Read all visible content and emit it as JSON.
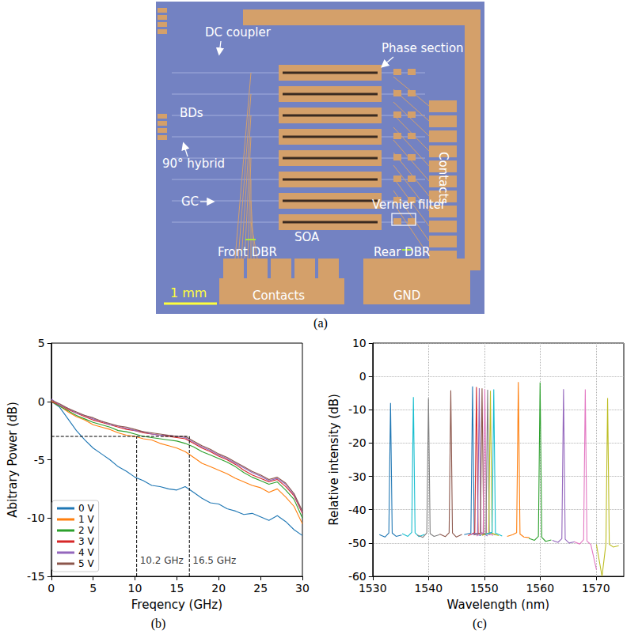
{
  "figure_a": {
    "caption": "(a)",
    "labels": [
      "DC coupler",
      "Phase section",
      "BDs",
      "90° hybrid",
      "GC",
      "Vernier filter",
      "Contacts",
      "SOA",
      "Front DBR",
      "Rear DBR",
      "Contacts",
      "GND"
    ],
    "scale_bar": "1 mm"
  },
  "chart_data": [
    {
      "caption": "(b)",
      "type": "line",
      "x_label": "Freqency (GHz)",
      "y_label": "Abitrary Power (dB)",
      "xlim": [
        0,
        30
      ],
      "xticks": [
        0,
        5,
        10,
        15,
        20,
        25,
        30
      ],
      "ylim": [
        -15,
        5
      ],
      "yticks": [
        -15,
        -10,
        -5,
        0,
        5
      ],
      "grid": false,
      "legend": "lower left",
      "x": [
        0,
        1,
        2,
        3,
        4,
        5,
        6,
        7,
        8,
        9,
        10,
        11,
        12,
        13,
        14,
        15,
        16,
        17,
        18,
        19,
        20,
        21,
        22,
        23,
        24,
        25,
        26,
        27,
        28,
        29,
        30
      ],
      "series": [
        {
          "name": "0 V",
          "color": "#1f77b4",
          "values": [
            0,
            -0.5,
            -1.5,
            -2.5,
            -3.3,
            -4.0,
            -4.5,
            -5.0,
            -5.6,
            -6.0,
            -6.5,
            -6.8,
            -7.2,
            -7.3,
            -7.5,
            -7.6,
            -7.3,
            -7.8,
            -8.3,
            -8.7,
            -8.8,
            -9.2,
            -9.4,
            -9.7,
            -9.6,
            -9.9,
            -10.2,
            -9.8,
            -10.3,
            -11.0,
            -11.5
          ]
        },
        {
          "name": "1 V",
          "color": "#ff7f0e",
          "values": [
            0,
            -0.4,
            -0.9,
            -1.3,
            -1.6,
            -2.0,
            -2.2,
            -2.4,
            -2.7,
            -2.9,
            -3.0,
            -3.2,
            -3.3,
            -3.6,
            -3.8,
            -4.0,
            -4.3,
            -4.8,
            -5.3,
            -5.6,
            -5.9,
            -6.2,
            -6.6,
            -6.9,
            -7.2,
            -7.4,
            -7.8,
            -7.5,
            -8.2,
            -9.0,
            -10.5
          ]
        },
        {
          "name": "2 V",
          "color": "#2ca02c",
          "values": [
            0,
            -0.4,
            -0.8,
            -1.2,
            -1.5,
            -1.8,
            -2.0,
            -2.2,
            -2.5,
            -2.6,
            -2.8,
            -3.0,
            -3.1,
            -3.2,
            -3.3,
            -3.4,
            -3.6,
            -3.9,
            -4.3,
            -4.6,
            -4.9,
            -5.2,
            -5.6,
            -6.1,
            -6.5,
            -6.8,
            -7.1,
            -6.9,
            -7.6,
            -8.4,
            -10.0
          ]
        },
        {
          "name": "3 V",
          "color": "#d62728",
          "values": [
            0,
            -0.3,
            -0.7,
            -1.0,
            -1.3,
            -1.6,
            -1.8,
            -2.0,
            -2.2,
            -2.4,
            -2.5,
            -2.7,
            -2.8,
            -2.9,
            -3.0,
            -3.1,
            -3.2,
            -3.6,
            -4.0,
            -4.3,
            -4.7,
            -5.0,
            -5.4,
            -5.9,
            -6.3,
            -6.6,
            -6.9,
            -6.7,
            -7.3,
            -8.1,
            -9.6
          ]
        },
        {
          "name": "4 V",
          "color": "#9467bd",
          "values": [
            0.2,
            -0.3,
            -0.6,
            -1.0,
            -1.2,
            -1.5,
            -1.7,
            -2.0,
            -2.1,
            -2.3,
            -2.5,
            -2.6,
            -2.8,
            -2.9,
            -2.9,
            -3.0,
            -3.1,
            -3.5,
            -3.9,
            -4.2,
            -4.6,
            -4.9,
            -5.3,
            -5.7,
            -6.1,
            -6.4,
            -6.8,
            -6.6,
            -7.1,
            -8.0,
            -9.5
          ]
        },
        {
          "name": "5 V",
          "color": "#8c564b",
          "values": [
            0.1,
            -0.2,
            -0.6,
            -0.9,
            -1.2,
            -1.4,
            -1.7,
            -1.9,
            -2.1,
            -2.2,
            -2.4,
            -2.6,
            -2.7,
            -2.8,
            -2.9,
            -3.0,
            -3.0,
            -3.4,
            -3.8,
            -4.1,
            -4.5,
            -4.8,
            -5.2,
            -5.6,
            -6.0,
            -6.3,
            -6.7,
            -6.5,
            -7.0,
            -7.9,
            -9.4
          ]
        }
      ],
      "annotations": [
        {
          "text": "10.2 GHz",
          "x": 10.2,
          "y": -3
        },
        {
          "text": "16.5 GHz",
          "x": 16.5,
          "y": -3
        }
      ]
    },
    {
      "caption": "(c)",
      "type": "line",
      "x_label": "Wavelength (nm)",
      "y_label": "Relative intensity (dB)",
      "xlim": [
        1530,
        1575
      ],
      "xticks": [
        1530,
        1540,
        1550,
        1560,
        1570
      ],
      "ylim": [
        -60,
        10
      ],
      "yticks": [
        -60,
        -50,
        -40,
        -30,
        -20,
        -10,
        0,
        10
      ],
      "grid": true,
      "series": [
        {
          "color": "#1f77b4",
          "x": [
            1531.2,
            1532.2,
            1532.9,
            1533.2,
            1533.5,
            1534.2,
            1535.2
          ],
          "values": [
            -47.5,
            -48.2,
            -47.0,
            -8.0,
            -47.0,
            -48.0,
            -47.6
          ]
        },
        {
          "color": "#17becf",
          "x": [
            1535.3,
            1536.3,
            1537.0,
            1537.3,
            1537.6,
            1538.3,
            1539.3
          ],
          "values": [
            -47.2,
            -48.0,
            -46.8,
            -6.2,
            -46.9,
            -48.1,
            -47.4
          ]
        },
        {
          "color": "#7f7f7f",
          "x": [
            1538.0,
            1539.0,
            1539.7,
            1540.0,
            1540.3,
            1541.0,
            1542.0
          ],
          "values": [
            -47.6,
            -48.3,
            -47.0,
            -6.5,
            -47.2,
            -48.0,
            -47.5
          ]
        },
        {
          "color": "#8c564b",
          "x": [
            1542.0,
            1543.0,
            1543.7,
            1544.0,
            1544.3,
            1545.0,
            1546.0
          ],
          "values": [
            -47.3,
            -48.1,
            -46.9,
            -4.2,
            -47.0,
            -48.2,
            -47.4
          ]
        },
        {
          "color": "#1f77b4",
          "x": [
            1546.4,
            1547.6,
            1547.9,
            1548.2,
            1549.4
          ],
          "values": [
            -47.5,
            -47.0,
            -3.0,
            -47.1,
            -47.8
          ]
        },
        {
          "color": "#d62728",
          "x": [
            1547.1,
            1548.3,
            1548.6,
            1548.9,
            1550.1
          ],
          "values": [
            -47.8,
            -46.9,
            -3.2,
            -47.0,
            -47.6
          ]
        },
        {
          "color": "#9467bd",
          "x": [
            1547.6,
            1548.8,
            1549.1,
            1549.4,
            1550.6
          ],
          "values": [
            -47.4,
            -47.1,
            -3.5,
            -46.8,
            -47.9
          ]
        },
        {
          "color": "#8c564b",
          "x": [
            1548.1,
            1549.3,
            1549.6,
            1549.9,
            1551.1
          ],
          "values": [
            -47.6,
            -47.0,
            -3.6,
            -47.2,
            -47.5
          ]
        },
        {
          "color": "#e377c2",
          "x": [
            1548.6,
            1549.8,
            1550.1,
            1550.4,
            1551.6
          ],
          "values": [
            -47.9,
            -46.9,
            -3.8,
            -47.0,
            -47.7
          ]
        },
        {
          "color": "#7f7f7f",
          "x": [
            1549.1,
            1550.3,
            1550.6,
            1550.9,
            1552.1
          ],
          "values": [
            -47.5,
            -47.2,
            -4.0,
            -46.9,
            -47.6
          ]
        },
        {
          "color": "#bcbd22",
          "x": [
            1549.6,
            1550.8,
            1551.1,
            1551.4,
            1552.6
          ],
          "values": [
            -47.7,
            -47.0,
            -4.3,
            -47.1,
            -47.8
          ]
        },
        {
          "color": "#17becf",
          "x": [
            1550.2,
            1551.4,
            1551.7,
            1552.0,
            1553.2
          ],
          "values": [
            -47.4,
            -46.8,
            -3.9,
            -47.0,
            -47.9
          ]
        },
        {
          "color": "#ff7f0e",
          "x": [
            1554.1,
            1555.1,
            1555.8,
            1556.1,
            1556.4,
            1557.1,
            1558.1
          ],
          "values": [
            -48.0,
            -47.5,
            -46.9,
            -1.7,
            -47.3,
            -48.2,
            -48.4
          ]
        },
        {
          "color": "#2ca02c",
          "x": [
            1558.0,
            1559.0,
            1559.7,
            1560.0,
            1560.3,
            1561.0,
            1562.0
          ],
          "values": [
            -48.6,
            -49.2,
            -48.0,
            -1.8,
            -48.3,
            -49.5,
            -49.1
          ]
        },
        {
          "color": "#9467bd",
          "x": [
            1562.2,
            1563.2,
            1563.9,
            1564.2,
            1564.5,
            1565.2,
            1566.2
          ],
          "values": [
            -49.2,
            -49.8,
            -48.7,
            -3.8,
            -48.9,
            -50.0,
            -49.6
          ]
        },
        {
          "color": "#e377c2",
          "x": [
            1566.1,
            1567.1,
            1567.8,
            1568.1,
            1568.4,
            1569.1,
            1570.1
          ],
          "values": [
            -49.6,
            -50.3,
            -49.0,
            -3.9,
            -49.4,
            -50.5,
            -58.0
          ]
        },
        {
          "color": "#bcbd22",
          "x": [
            1570.1,
            1571.1,
            1571.8,
            1572.1,
            1572.4,
            1573.1,
            1574.1
          ],
          "values": [
            -50.5,
            -60.0,
            -50.2,
            -6.5,
            -50.4,
            -51.2,
            -50.8
          ]
        }
      ]
    }
  ]
}
